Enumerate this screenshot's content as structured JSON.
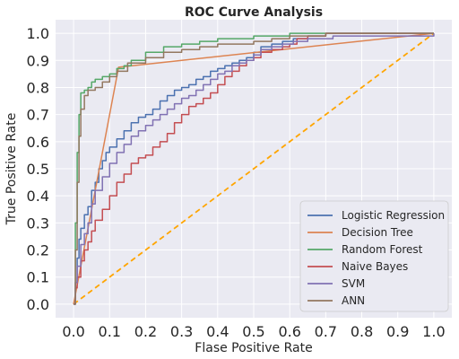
{
  "chart_data": {
    "type": "line",
    "title": "ROC Curve Analysis",
    "xlabel": "Flase Positive Rate",
    "ylabel": "True Positive Rate",
    "xlim": [
      -0.05,
      1.05
    ],
    "ylim": [
      -0.05,
      1.05
    ],
    "xticks": [
      "0.0",
      "0.1",
      "0.2",
      "0.3",
      "0.4",
      "0.5",
      "0.6",
      "0.7",
      "0.8",
      "0.9",
      "1.0"
    ],
    "yticks": [
      "0.0",
      "0.1",
      "0.2",
      "0.3",
      "0.4",
      "0.5",
      "0.6",
      "0.7",
      "0.8",
      "0.9",
      "1.0"
    ],
    "grid": true,
    "legend_position": "lower-right",
    "background": "#eaeaf2",
    "series": [
      {
        "name": "Logistic Regression",
        "color": "#4c72b0",
        "x": [
          0.0,
          0.005,
          0.01,
          0.015,
          0.02,
          0.03,
          0.04,
          0.05,
          0.06,
          0.07,
          0.08,
          0.09,
          0.1,
          0.12,
          0.14,
          0.16,
          0.18,
          0.2,
          0.22,
          0.24,
          0.26,
          0.28,
          0.3,
          0.32,
          0.34,
          0.36,
          0.38,
          0.4,
          0.42,
          0.44,
          0.46,
          0.48,
          0.5,
          0.52,
          0.55,
          0.58,
          0.61,
          0.65,
          0.7,
          1.0
        ],
        "y": [
          0.0,
          0.08,
          0.17,
          0.24,
          0.28,
          0.33,
          0.36,
          0.42,
          0.45,
          0.5,
          0.53,
          0.56,
          0.58,
          0.61,
          0.64,
          0.67,
          0.69,
          0.7,
          0.72,
          0.75,
          0.77,
          0.79,
          0.8,
          0.81,
          0.83,
          0.84,
          0.86,
          0.87,
          0.88,
          0.89,
          0.9,
          0.91,
          0.93,
          0.95,
          0.96,
          0.97,
          0.98,
          0.99,
          1.0,
          1.0
        ]
      },
      {
        "name": "Decision Tree",
        "color": "#dd8452",
        "x": [
          0.0,
          0.125,
          1.0
        ],
        "y": [
          0.0,
          0.875,
          1.0
        ]
      },
      {
        "name": "Random Forest",
        "color": "#55a868",
        "x": [
          0.0,
          0.005,
          0.01,
          0.015,
          0.02,
          0.03,
          0.04,
          0.05,
          0.06,
          0.08,
          0.1,
          0.12,
          0.14,
          0.16,
          0.2,
          0.25,
          0.3,
          0.35,
          0.4,
          0.45,
          0.5,
          0.55,
          0.6,
          0.65,
          1.0
        ],
        "y": [
          0.0,
          0.3,
          0.56,
          0.7,
          0.78,
          0.79,
          0.8,
          0.82,
          0.83,
          0.84,
          0.85,
          0.87,
          0.88,
          0.9,
          0.93,
          0.95,
          0.96,
          0.97,
          0.98,
          0.98,
          0.99,
          0.99,
          1.0,
          1.0,
          1.0
        ]
      },
      {
        "name": "Naive Bayes",
        "color": "#c44e52",
        "x": [
          0.0,
          0.005,
          0.01,
          0.02,
          0.03,
          0.04,
          0.05,
          0.06,
          0.08,
          0.1,
          0.12,
          0.14,
          0.16,
          0.18,
          0.2,
          0.22,
          0.24,
          0.26,
          0.28,
          0.3,
          0.32,
          0.34,
          0.36,
          0.38,
          0.4,
          0.42,
          0.44,
          0.46,
          0.48,
          0.5,
          0.52,
          0.55,
          0.58,
          0.6,
          0.62,
          0.65,
          0.7,
          1.0
        ],
        "y": [
          0.0,
          0.06,
          0.1,
          0.16,
          0.2,
          0.23,
          0.27,
          0.31,
          0.35,
          0.4,
          0.45,
          0.48,
          0.52,
          0.54,
          0.55,
          0.58,
          0.6,
          0.63,
          0.67,
          0.7,
          0.73,
          0.74,
          0.76,
          0.78,
          0.81,
          0.84,
          0.86,
          0.88,
          0.9,
          0.91,
          0.93,
          0.94,
          0.95,
          0.96,
          0.98,
          0.99,
          1.0,
          1.0
        ]
      },
      {
        "name": "SVM",
        "color": "#8172b3",
        "x": [
          0.0,
          0.005,
          0.01,
          0.02,
          0.03,
          0.04,
          0.05,
          0.06,
          0.08,
          0.1,
          0.12,
          0.14,
          0.16,
          0.18,
          0.2,
          0.22,
          0.24,
          0.26,
          0.28,
          0.3,
          0.32,
          0.34,
          0.36,
          0.38,
          0.4,
          0.42,
          0.44,
          0.46,
          0.48,
          0.5,
          0.52,
          0.55,
          0.58,
          0.61,
          0.65,
          0.72,
          1.0
        ],
        "y": [
          0.0,
          0.08,
          0.14,
          0.22,
          0.26,
          0.3,
          0.37,
          0.42,
          0.47,
          0.52,
          0.56,
          0.59,
          0.62,
          0.64,
          0.66,
          0.68,
          0.7,
          0.72,
          0.74,
          0.76,
          0.77,
          0.79,
          0.81,
          0.83,
          0.85,
          0.86,
          0.88,
          0.89,
          0.9,
          0.92,
          0.94,
          0.95,
          0.96,
          0.97,
          0.98,
          0.99,
          1.0
        ]
      },
      {
        "name": "ANN",
        "color": "#937860",
        "x": [
          0.0,
          0.005,
          0.01,
          0.015,
          0.02,
          0.03,
          0.04,
          0.06,
          0.08,
          0.1,
          0.12,
          0.15,
          0.2,
          0.25,
          0.3,
          0.35,
          0.4,
          0.45,
          0.5,
          0.55,
          0.6,
          0.65,
          0.7,
          0.75,
          1.0
        ],
        "y": [
          0.0,
          0.2,
          0.45,
          0.62,
          0.72,
          0.77,
          0.79,
          0.8,
          0.82,
          0.84,
          0.86,
          0.89,
          0.91,
          0.93,
          0.94,
          0.95,
          0.96,
          0.96,
          0.97,
          0.98,
          0.99,
          0.99,
          1.0,
          1.0,
          1.0
        ]
      }
    ],
    "reference_line": {
      "color": "#ffa500",
      "style": "dashed",
      "x": [
        0.0,
        1.0
      ],
      "y": [
        0.0,
        1.0
      ]
    }
  }
}
